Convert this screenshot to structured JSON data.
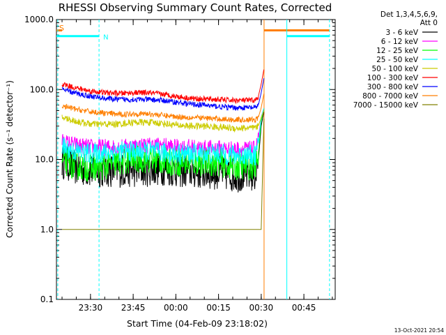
{
  "chart_data": {
    "type": "line",
    "title": "RHESSI Observing Summary Count Rates, Corrected",
    "xlabel": "Start Time (04-Feb-09 23:18:02)",
    "ylabel": "Corrected Count Rate (s⁻¹ detector⁻¹)",
    "y_scale": "log",
    "ylim": [
      0.1,
      1000
    ],
    "xlim": [
      "23:18:02",
      "00:56:00"
    ],
    "x_ticks": [
      "23:30",
      "23:45",
      "00:00",
      "00:15",
      "00:30",
      "00:45"
    ],
    "y_ticks": [
      "0.1",
      "1.0",
      "10.0",
      "100.0",
      "1000.0"
    ],
    "legend_header": "Det 1,3,4,5,6,9,",
    "legend_header2": "Att 0",
    "legend_position": "right",
    "flag_labels": {
      "saa": "S",
      "night": "N"
    },
    "flag_levels": {
      "saa": 700,
      "night": 580
    },
    "flags": [
      {
        "name": "saa",
        "color": "#ff7f00",
        "start": "23:18:02",
        "end": "23:20:00"
      },
      {
        "name": "night",
        "color": "#00ffff",
        "start": "23:18:02",
        "end": "23:33:00"
      },
      {
        "name": "saa",
        "color": "#ff7f00",
        "start": "00:31:00",
        "end": "00:54:00"
      },
      {
        "name": "night",
        "color": "#00ffff",
        "start": "00:39:00",
        "end": "00:54:00"
      }
    ],
    "vertical_lines": [
      {
        "x": "23:18:30",
        "color": "#00ffff",
        "style": "dashed"
      },
      {
        "x": "23:33:00",
        "color": "#00ffff",
        "style": "dashed"
      },
      {
        "x": "00:31:00",
        "color": "#ff7f00",
        "style": "solid"
      },
      {
        "x": "00:39:00",
        "color": "#00ffff",
        "style": "solid"
      },
      {
        "x": "00:54:00",
        "color": "#00ffff",
        "style": "dashed"
      }
    ],
    "x": [
      "23:20",
      "23:25",
      "23:30",
      "23:35",
      "23:40",
      "23:45",
      "23:50",
      "23:55",
      "00:00",
      "00:05",
      "00:10",
      "00:15",
      "00:20",
      "00:25",
      "00:28",
      "00:29",
      "00:30",
      "00:31"
    ],
    "series": [
      {
        "name": "3 - 6 keV",
        "color": "#000000",
        "noise": 0.25,
        "values": [
          9.5,
          7.5,
          7.0,
          7.0,
          7.0,
          7.0,
          7.2,
          7.5,
          7.0,
          6.8,
          6.5,
          6.5,
          6.0,
          6.0,
          6.0,
          10,
          30,
          50
        ]
      },
      {
        "name": "6 - 12 keV",
        "color": "#ff00ff",
        "noise": 0.12,
        "values": [
          18,
          16,
          15,
          15,
          15,
          15.5,
          16,
          16,
          15,
          15,
          14.5,
          14.5,
          14,
          14,
          14,
          20,
          40,
          55
        ]
      },
      {
        "name": "12 - 25 keV",
        "color": "#00ff00",
        "noise": 0.2,
        "values": [
          9.5,
          8.0,
          7.5,
          8.0,
          9.0,
          10,
          10,
          9.5,
          9.0,
          9.0,
          9.0,
          9.0,
          8.0,
          8.0,
          8.0,
          12,
          35,
          55
        ]
      },
      {
        "name": "25 - 50 keV",
        "color": "#00ffff",
        "noise": 0.15,
        "values": [
          15,
          13,
          12,
          12.5,
          13,
          13,
          13,
          12.5,
          12,
          12,
          12,
          12,
          11.5,
          11.5,
          11.5,
          16,
          40,
          55
        ]
      },
      {
        "name": "50 - 100 keV",
        "color": "#cccc00",
        "noise": 0.05,
        "values": [
          40,
          35,
          32,
          32,
          32,
          34,
          34,
          33,
          31,
          30,
          30,
          29,
          28,
          28,
          28,
          30,
          40,
          50
        ]
      },
      {
        "name": "100 - 300 keV",
        "color": "#ff0000",
        "noise": 0.04,
        "values": [
          120,
          105,
          95,
          90,
          88,
          90,
          90,
          86,
          80,
          75,
          73,
          72,
          70,
          70,
          70,
          80,
          120,
          200
        ]
      },
      {
        "name": "300 - 800 keV",
        "color": "#0000ff",
        "noise": 0.04,
        "values": [
          100,
          88,
          80,
          75,
          72,
          72,
          72,
          70,
          66,
          62,
          60,
          57,
          55,
          55,
          55,
          60,
          90,
          150
        ]
      },
      {
        "name": "800 - 7000 keV",
        "color": "#ff7f00",
        "noise": 0.04,
        "values": [
          58,
          52,
          48,
          46,
          44,
          45,
          45,
          43,
          41,
          40,
          39,
          38,
          37,
          37,
          37,
          40,
          55,
          90
        ]
      },
      {
        "name": "7000 - 15000 keV",
        "color": "#808000",
        "noise": 0.0,
        "values": [
          1.0,
          1.0,
          1.0,
          1.0,
          1.0,
          1.0,
          1.0,
          1.0,
          1.0,
          1.0,
          1.0,
          1.0,
          1.0,
          1.0,
          1.0,
          1.0,
          1.0,
          50
        ]
      }
    ]
  },
  "footer": {
    "timestamp": "13-Oct-2021 20:54"
  }
}
